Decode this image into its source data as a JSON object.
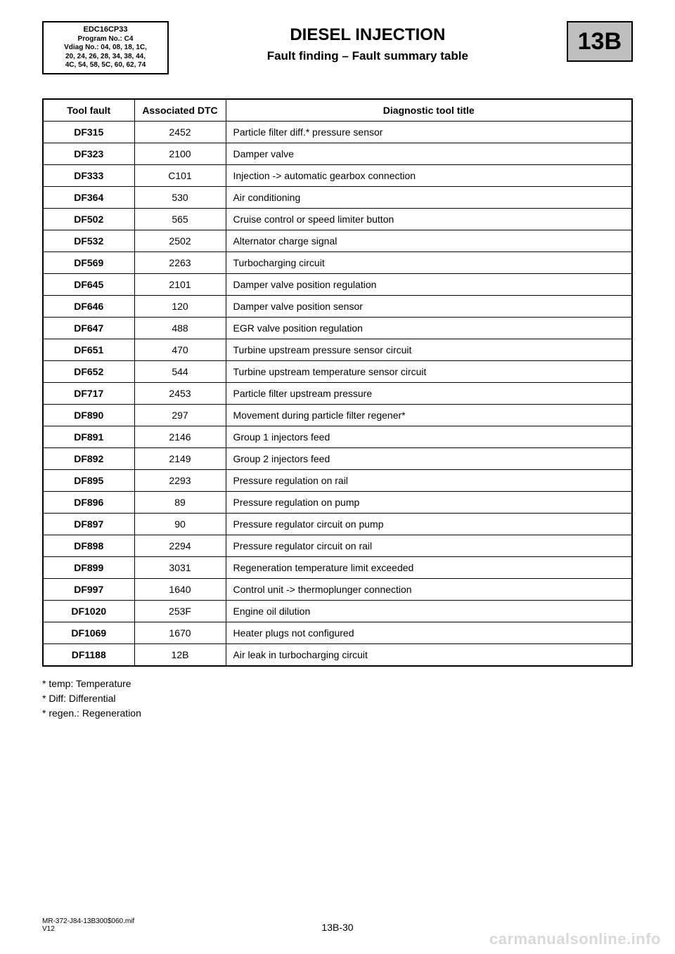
{
  "meta": {
    "line1": "EDC16CP33",
    "line2": "Program No.: C4",
    "line3": "Vdiag No.: 04, 08, 18, 1C,",
    "line4": "20, 24, 26, 28, 34, 38, 44,",
    "line5": "4C, 54, 58, 5C, 60, 62, 74"
  },
  "title": {
    "main": "DIESEL INJECTION",
    "sub": "Fault finding – Fault summary table"
  },
  "section_code": "13B",
  "table": {
    "headers": {
      "fault": "Tool fault",
      "dtc": "Associated DTC",
      "title": "Diagnostic tool title"
    },
    "rows": [
      {
        "fault": "DF315",
        "dtc": "2452",
        "title": "Particle filter diff.* pressure sensor"
      },
      {
        "fault": "DF323",
        "dtc": "2100",
        "title": "Damper valve"
      },
      {
        "fault": "DF333",
        "dtc": "C101",
        "title": "Injection -> automatic gearbox connection"
      },
      {
        "fault": "DF364",
        "dtc": "530",
        "title": "Air conditioning"
      },
      {
        "fault": "DF502",
        "dtc": "565",
        "title": "Cruise control or speed limiter button"
      },
      {
        "fault": "DF532",
        "dtc": "2502",
        "title": "Alternator charge signal"
      },
      {
        "fault": "DF569",
        "dtc": "2263",
        "title": "Turbocharging circuit"
      },
      {
        "fault": "DF645",
        "dtc": "2101",
        "title": "Damper valve position regulation"
      },
      {
        "fault": "DF646",
        "dtc": "120",
        "title": "Damper valve position sensor"
      },
      {
        "fault": "DF647",
        "dtc": "488",
        "title": "EGR valve position regulation"
      },
      {
        "fault": "DF651",
        "dtc": "470",
        "title": "Turbine upstream pressure sensor circuit"
      },
      {
        "fault": "DF652",
        "dtc": "544",
        "title": "Turbine upstream temperature sensor circuit"
      },
      {
        "fault": "DF717",
        "dtc": "2453",
        "title": "Particle filter upstream pressure"
      },
      {
        "fault": "DF890",
        "dtc": "297",
        "title": "Movement during particle filter regener*"
      },
      {
        "fault": "DF891",
        "dtc": "2146",
        "title": "Group 1 injectors feed"
      },
      {
        "fault": "DF892",
        "dtc": "2149",
        "title": "Group 2 injectors feed"
      },
      {
        "fault": "DF895",
        "dtc": "2293",
        "title": "Pressure regulation on rail"
      },
      {
        "fault": "DF896",
        "dtc": "89",
        "title": "Pressure regulation on pump"
      },
      {
        "fault": "DF897",
        "dtc": "90",
        "title": "Pressure regulator circuit on pump"
      },
      {
        "fault": "DF898",
        "dtc": "2294",
        "title": "Pressure regulator circuit on rail"
      },
      {
        "fault": "DF899",
        "dtc": "3031",
        "title": "Regeneration temperature limit exceeded"
      },
      {
        "fault": "DF997",
        "dtc": "1640",
        "title": "Control unit -> thermoplunger connection"
      },
      {
        "fault": "DF1020",
        "dtc": "253F",
        "title": "Engine oil dilution"
      },
      {
        "fault": "DF1069",
        "dtc": "1670",
        "title": "Heater plugs not configured"
      },
      {
        "fault": "DF1188",
        "dtc": "12B",
        "title": "Air leak in turbocharging circuit"
      }
    ]
  },
  "footnotes": {
    "l1": "* temp: Temperature",
    "l2": "* Diff: Differential",
    "l3": "* regen.: Regeneration"
  },
  "footer": {
    "ref": "MR-372-J84-13B300$060.mif",
    "ver": "V12",
    "page": "13B-30"
  },
  "watermark": "carmanualsonline.info"
}
